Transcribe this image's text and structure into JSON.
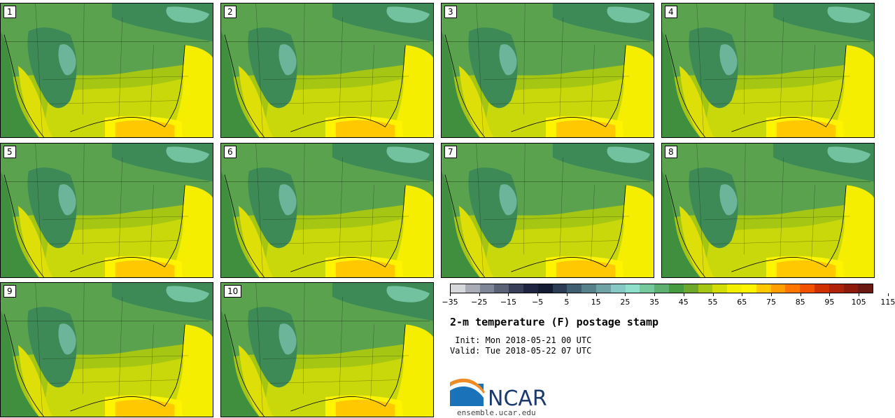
{
  "panels": [
    {
      "label": "1"
    },
    {
      "label": "2"
    },
    {
      "label": "3"
    },
    {
      "label": "4"
    },
    {
      "label": "5"
    },
    {
      "label": "6"
    },
    {
      "label": "7"
    },
    {
      "label": "8"
    },
    {
      "label": "9"
    },
    {
      "label": "10"
    }
  ],
  "colorbar": {
    "colors": [
      "#d6d8dc",
      "#a9acb6",
      "#7e8596",
      "#5a6278",
      "#383e58",
      "#1f2440",
      "#121b32",
      "#2a3d55",
      "#3f5f70",
      "#56808a",
      "#6ea3a6",
      "#86c9c4",
      "#8ee0cc",
      "#76c99a",
      "#5eb071",
      "#469a3f",
      "#6ea82a",
      "#a6c614",
      "#d2dd07",
      "#f2f000",
      "#fff400",
      "#ffc800",
      "#ff9f00",
      "#ff7600",
      "#f25100",
      "#cf3200",
      "#ae2208",
      "#8e1a0c",
      "#6a1a12"
    ],
    "ticks": [
      "-35",
      "-25",
      "-15",
      "-5",
      "5",
      "15",
      "25",
      "35",
      "45",
      "55",
      "65",
      "75",
      "85",
      "95",
      "105",
      "115"
    ]
  },
  "title": "2-m temperature (F) postage stamp",
  "init_line": " Init: Mon 2018-05-21 00 UTC",
  "valid_line": "Valid: Tue 2018-05-22 07 UTC",
  "logo_text": "NCAR",
  "url": "ensemble.ucar.edu"
}
